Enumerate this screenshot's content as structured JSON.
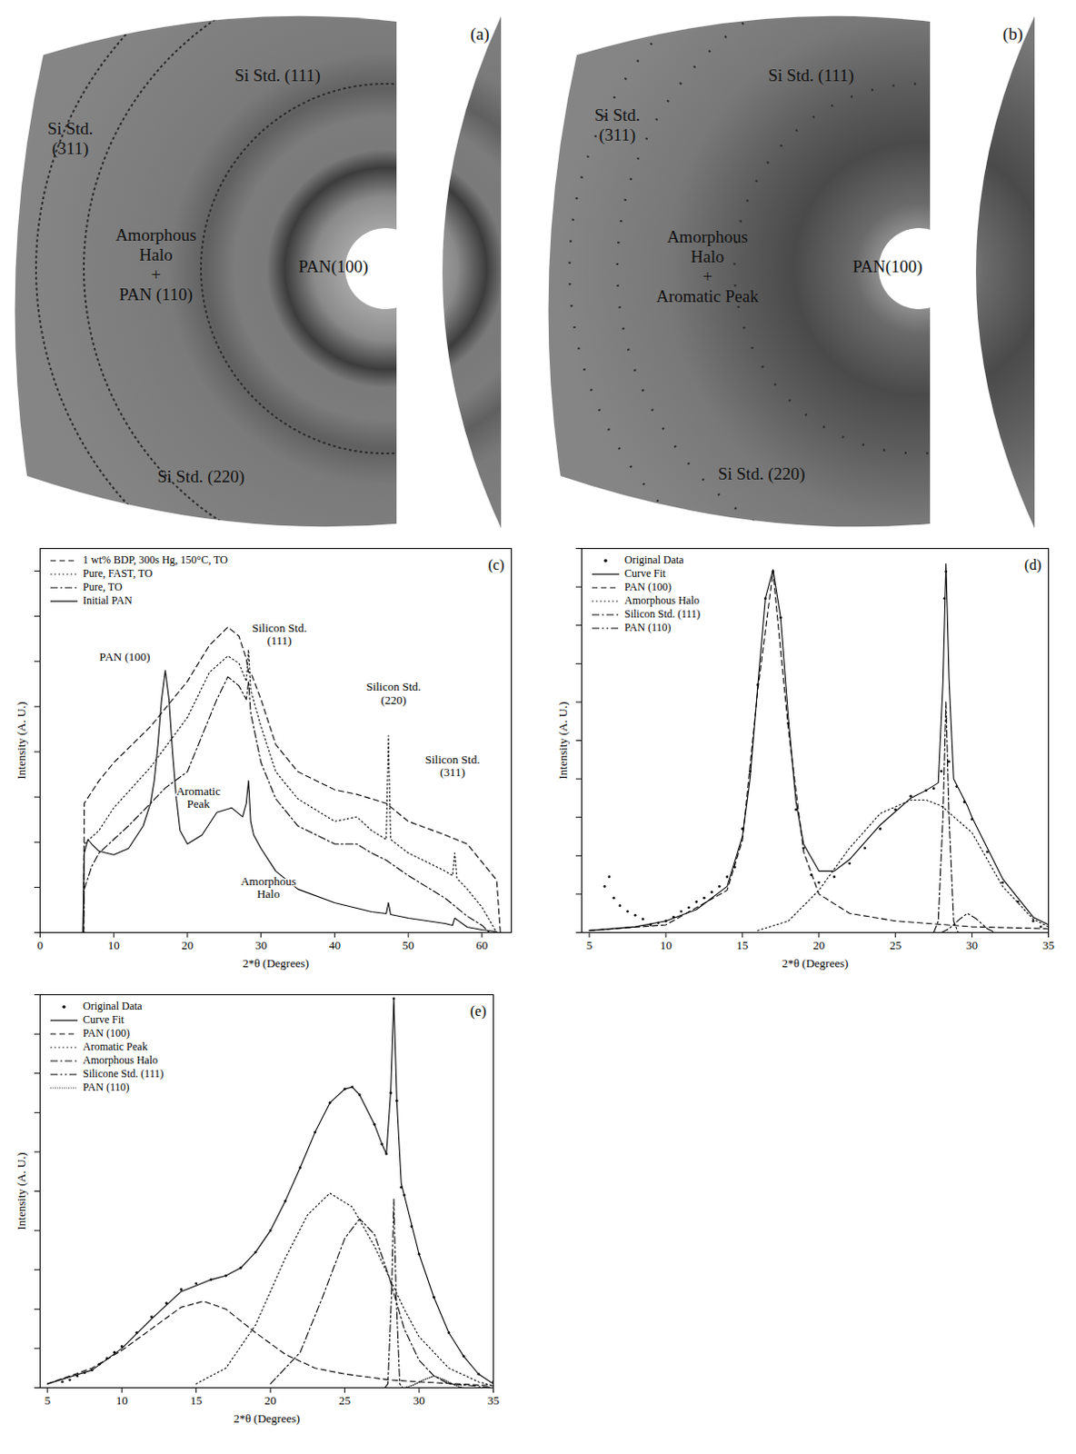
{
  "chart_data": [
    {
      "type": "image",
      "title": "(a)",
      "annotations": [
        {
          "text": "Si Std. (111)"
        },
        {
          "text": "Si Std.\n(311)"
        },
        {
          "text": "Amorphous\nHalo\n+\nPAN (110)"
        },
        {
          "text": "PAN(100)"
        },
        {
          "text": "Si Std. (220)"
        }
      ]
    },
    {
      "type": "image",
      "title": "(b)",
      "annotations": [
        {
          "text": "Si Std. (111)"
        },
        {
          "text": "Si Std.\n(311)"
        },
        {
          "text": "Amorphous\nHalo\n+\nAromatic Peak"
        },
        {
          "text": "PAN(100)"
        },
        {
          "text": "Si Std. (220)"
        }
      ]
    },
    {
      "type": "line",
      "title": "(c)",
      "x_label": "2*θ (Degrees)",
      "y_label": "Intensity (A. U.)",
      "xlim": [
        0,
        64
      ],
      "xticks": [
        0,
        10,
        20,
        30,
        40,
        50,
        60
      ],
      "ylim": [
        0,
        8.5
      ],
      "yticks": [
        0,
        1,
        2,
        3,
        4,
        5,
        6,
        7,
        8
      ],
      "tick_labels": "x",
      "legend": "top-left",
      "series": [
        {
          "name": "1 wt% BDP, 300s Hg, 150°C, TO",
          "color": "#000000",
          "line_style": "dashed",
          "x": [
            5.9,
            6,
            8,
            10,
            15,
            20,
            23,
            25.5,
            27,
            28,
            28.3,
            28.6,
            30,
            32,
            35,
            40,
            43,
            45,
            47,
            50,
            55,
            58,
            60,
            62,
            62.5
          ],
          "values": [
            0,
            2.86,
            3.36,
            3.76,
            4.56,
            5.56,
            6.36,
            6.76,
            6.56,
            6.06,
            5.76,
            5.76,
            5.16,
            4.16,
            3.56,
            3.16,
            3.06,
            2.96,
            2.86,
            2.46,
            2.16,
            1.96,
            1.56,
            1.16,
            0
          ]
        },
        {
          "name": "Pure, FAST, TO",
          "color": "#000000",
          "line_style": "dotted",
          "x": [
            5.9,
            6,
            8,
            10,
            15,
            20,
            23,
            25.5,
            27,
            28,
            28.3,
            28.6,
            30,
            32,
            35,
            40,
            43,
            45,
            47,
            47.3,
            47.6,
            50,
            55,
            56,
            56.3,
            56.6,
            58,
            60,
            62
          ],
          "values": [
            0,
            1.96,
            2.26,
            2.76,
            3.66,
            4.76,
            5.76,
            6.12,
            5.96,
            5.56,
            6.26,
            5.36,
            4.56,
            3.56,
            2.96,
            2.46,
            2.56,
            2.26,
            2.06,
            4.36,
            2.06,
            1.76,
            1.36,
            1.26,
            1.76,
            1.2,
            0.96,
            0.56,
            0
          ]
        },
        {
          "name": "Pure, TO",
          "color": "#000000",
          "line_style": "dashdot",
          "x": [
            5.9,
            6,
            7,
            8,
            10,
            12,
            15,
            17,
            20,
            22,
            24,
            25.5,
            27,
            28,
            28.3,
            28.6,
            30,
            32,
            35,
            40,
            43,
            45,
            47,
            50,
            55,
            58,
            60,
            61
          ],
          "values": [
            0,
            0.96,
            1.46,
            1.76,
            2.06,
            2.36,
            2.86,
            3.2,
            3.56,
            4.36,
            5.16,
            5.66,
            5.46,
            5.16,
            5.56,
            4.86,
            3.76,
            2.96,
            2.36,
            1.96,
            1.96,
            1.76,
            1.6,
            1.26,
            0.76,
            0.36,
            0.16,
            0
          ]
        },
        {
          "name": "Initial PAN",
          "color": "#000000",
          "line_style": "solid",
          "x": [
            5.8,
            6,
            6.5,
            7,
            8,
            10,
            12,
            14,
            15,
            15.5,
            16,
            16.5,
            17,
            17.5,
            18,
            18.5,
            19,
            20,
            22,
            24,
            26,
            27.5,
            28,
            28.3,
            28.6,
            29,
            30,
            32,
            35,
            40,
            45,
            47,
            47.3,
            47.6,
            50,
            55,
            56,
            56.3,
            58,
            60,
            62
          ],
          "values": [
            0,
            1.76,
            2.06,
            1.96,
            1.8,
            1.72,
            1.86,
            2.36,
            2.86,
            3.36,
            4.16,
            5.16,
            5.8,
            5.16,
            3.96,
            2.96,
            2.26,
            1.96,
            2.16,
            2.66,
            2.76,
            2.56,
            2.86,
            3.36,
            2.46,
            2.16,
            1.86,
            1.36,
            0.96,
            0.66,
            0.46,
            0.42,
            0.66,
            0.4,
            0.32,
            0.2,
            0.16,
            0.32,
            0.12,
            0.06,
            0.02
          ]
        }
      ],
      "annotations": [
        {
          "text": "PAN (100)",
          "x": 11.5,
          "y": 6.1
        },
        {
          "text": "Aromatic\nPeak",
          "x": 21.5,
          "y": 3.0
        },
        {
          "text": "Amorphous\nHalo",
          "x": 31,
          "y": 1.0
        },
        {
          "text": "Silicon Std.\n(111)",
          "x": 32.5,
          "y": 6.6
        },
        {
          "text": "Silicon Std.\n(220)",
          "x": 48,
          "y": 5.3
        },
        {
          "text": "Silicon Std.\n(311)",
          "x": 56,
          "y": 3.7
        }
      ]
    },
    {
      "type": "line",
      "title": "(d)",
      "x_label": "2*θ (Degrees)",
      "y_label": "Intensity (A. U.)",
      "xlim": [
        4.5,
        35
      ],
      "xticks": [
        5,
        10,
        15,
        20,
        25,
        30,
        35
      ],
      "ylim": [
        0,
        10
      ],
      "yticks": [
        0,
        1,
        2,
        3,
        4,
        5,
        6,
        7,
        8,
        9,
        10
      ],
      "tick_labels": "x",
      "legend": "top-left",
      "series": [
        {
          "name": "Original Data",
          "color": "#000000",
          "type": "scatter",
          "marker": "dot",
          "x": [
            6,
            6.3,
            6.6,
            7,
            7.5,
            8,
            8.5,
            9,
            9.5,
            10,
            10.5,
            11,
            11.5,
            12,
            12.5,
            13,
            13.5,
            14,
            14.5,
            15,
            15.5,
            16,
            16.5,
            17,
            17.5,
            18,
            18.5,
            19,
            19.5,
            20,
            21,
            22,
            23,
            24,
            25,
            26,
            27,
            27.5,
            28,
            28.2,
            28.3,
            28.5,
            29,
            29.5,
            30,
            31,
            32,
            33,
            34,
            34.5
          ],
          "values": [
            1.2,
            1.45,
            0.9,
            0.7,
            0.55,
            0.45,
            0.35,
            0.2,
            0.25,
            0.3,
            0.4,
            0.55,
            0.65,
            0.8,
            0.9,
            1.05,
            1.2,
            1.45,
            1.7,
            2.7,
            4.2,
            6.45,
            8.7,
            9.4,
            8.2,
            5.45,
            3.2,
            2.2,
            1.5,
            1.3,
            1.45,
            1.8,
            2.2,
            2.7,
            3.2,
            3.55,
            3.7,
            3.75,
            4.2,
            8.7,
            9.4,
            4.45,
            3.8,
            3.4,
            2.95,
            2.1,
            1.3,
            0.8,
            0.3,
            0.15
          ]
        },
        {
          "name": "Curve Fit",
          "color": "#000000",
          "line_style": "solid",
          "x": [
            5,
            8,
            10,
            12,
            14,
            15,
            15.5,
            16,
            16.5,
            17,
            17.5,
            18,
            18.5,
            19,
            20,
            21,
            22,
            24,
            26,
            27,
            27.8,
            28.1,
            28.3,
            28.5,
            28.8,
            29.7,
            30,
            32,
            34,
            35
          ],
          "values": [
            0.05,
            0.15,
            0.3,
            0.6,
            1.2,
            2.5,
            4.0,
            6.4,
            8.7,
            9.45,
            8.2,
            5.6,
            3.4,
            2.3,
            1.6,
            1.6,
            1.9,
            2.8,
            3.5,
            3.7,
            3.9,
            6.5,
            9.6,
            6.6,
            4.0,
            3.3,
            3.0,
            1.4,
            0.4,
            0.2
          ]
        },
        {
          "name": "PAN (100)",
          "color": "#000000",
          "line_style": "dashed",
          "x": [
            5,
            10,
            14,
            15,
            16,
            17,
            18,
            19,
            20,
            22,
            25,
            30,
            35
          ],
          "values": [
            0.05,
            0.2,
            1.1,
            2.4,
            6.3,
            9.4,
            5.3,
            2.1,
            1.0,
            0.5,
            0.3,
            0.15,
            0.1
          ]
        },
        {
          "name": "Amorphous Halo",
          "color": "#000000",
          "line_style": "dotted",
          "x": [
            16,
            18,
            20,
            22,
            24,
            26,
            27,
            28,
            30,
            32,
            34,
            35
          ],
          "values": [
            0.05,
            0.3,
            1.1,
            2.2,
            3.1,
            3.45,
            3.45,
            3.3,
            2.6,
            1.2,
            0.35,
            0.15
          ]
        },
        {
          "name": "Silicon Std. (111)",
          "color": "#000000",
          "line_style": "dashdot",
          "x": [
            27.5,
            27.8,
            28.1,
            28.3,
            28.5,
            28.8,
            29.1
          ],
          "values": [
            0,
            0.3,
            3,
            6,
            3,
            0.3,
            0
          ]
        },
        {
          "name": "PAN (110)",
          "color": "#000000",
          "line_style": "dashdotdot",
          "x": [
            28,
            28.5,
            29.2,
            29.7,
            30.3,
            31,
            31.5
          ],
          "values": [
            0,
            0.1,
            0.35,
            0.5,
            0.35,
            0.1,
            0
          ]
        }
      ]
    },
    {
      "type": "line",
      "title": "(e)",
      "x_label": "2*θ (Degrees)",
      "y_label": "Intensity (A. U.)",
      "xlim": [
        4.5,
        35
      ],
      "xticks": [
        5,
        10,
        15,
        20,
        25,
        30,
        35
      ],
      "ylim": [
        0,
        10
      ],
      "yticks": [
        0,
        1,
        2,
        3,
        4,
        5,
        6,
        7,
        8,
        9,
        10
      ],
      "tick_labels": "x",
      "legend": "top-left",
      "series": [
        {
          "name": "Original Data",
          "color": "#000000",
          "type": "scatter",
          "marker": "dot",
          "x": [
            6,
            6.5,
            7,
            7.5,
            8,
            8.5,
            9,
            9.5,
            10,
            11,
            12,
            13,
            14,
            15,
            16,
            17,
            18,
            19,
            20,
            21,
            22,
            23,
            24,
            25,
            25.5,
            26,
            27,
            27.5,
            27.8,
            28.1,
            28.3,
            28.5,
            28.8,
            29,
            29.5,
            30,
            31,
            32,
            33,
            34,
            35
          ],
          "values": [
            0.15,
            0.2,
            0.3,
            0.38,
            0.45,
            0.6,
            0.75,
            0.9,
            1.05,
            1.4,
            1.8,
            2.15,
            2.5,
            2.65,
            2.75,
            2.85,
            3.05,
            3.45,
            4.0,
            4.75,
            5.6,
            6.5,
            7.25,
            7.6,
            7.65,
            7.45,
            6.7,
            6.2,
            5.95,
            7.5,
            9.9,
            7.3,
            5.1,
            4.9,
            4.1,
            3.4,
            2.3,
            1.4,
            0.8,
            0.35,
            0.15
          ]
        },
        {
          "name": "Curve Fit",
          "color": "#000000",
          "line_style": "solid",
          "x": [
            5,
            8,
            10,
            12,
            14,
            15,
            16,
            17,
            18,
            19,
            20,
            21,
            22,
            23,
            24,
            25,
            25.5,
            26,
            27,
            27.5,
            27.8,
            28.1,
            28.3,
            28.5,
            28.8,
            29,
            30,
            31,
            32,
            33,
            34,
            35
          ],
          "values": [
            0.1,
            0.45,
            1.0,
            1.75,
            2.45,
            2.6,
            2.75,
            2.85,
            3.05,
            3.45,
            4.0,
            4.75,
            5.6,
            6.5,
            7.25,
            7.6,
            7.65,
            7.45,
            6.7,
            6.2,
            5.95,
            7.6,
            9.9,
            7.3,
            5.2,
            4.9,
            3.4,
            2.3,
            1.4,
            0.8,
            0.35,
            0.1
          ]
        },
        {
          "name": "PAN (100)",
          "color": "#000000",
          "line_style": "dashed",
          "x": [
            5,
            8,
            10,
            12,
            14,
            15.5,
            17,
            19,
            21,
            23,
            25,
            28,
            30,
            35
          ],
          "values": [
            0.1,
            0.5,
            0.95,
            1.5,
            2.05,
            2.2,
            2.0,
            1.4,
            0.85,
            0.5,
            0.35,
            0.2,
            0.15,
            0.05
          ]
        },
        {
          "name": "Aromatic Peak",
          "color": "#000000",
          "line_style": "dotted",
          "x": [
            15,
            17,
            19,
            21,
            22.5,
            24,
            25.5,
            27,
            28,
            29,
            30,
            32,
            34,
            35
          ],
          "values": [
            0.1,
            0.5,
            1.6,
            3.3,
            4.4,
            4.95,
            4.6,
            3.6,
            2.8,
            2.0,
            1.3,
            0.5,
            0.15,
            0.05
          ]
        },
        {
          "name": "Amorphous Halo",
          "color": "#000000",
          "line_style": "dashdot",
          "x": [
            20,
            22,
            23.5,
            25,
            26,
            27,
            28,
            29,
            30,
            31,
            32,
            35
          ],
          "values": [
            0.1,
            0.9,
            2.3,
            3.8,
            4.3,
            3.9,
            2.8,
            1.5,
            0.7,
            0.3,
            0.1,
            0
          ]
        },
        {
          "name": "Silicone Std. (111)",
          "color": "#000000",
          "line_style": "dashdotdot",
          "x": [
            27.7,
            27.9,
            28.15,
            28.3,
            28.45,
            28.7,
            28.9
          ],
          "values": [
            0,
            0.1,
            2.4,
            4.8,
            2.4,
            0.1,
            0
          ]
        },
        {
          "name": "PAN (110)",
          "color": "#000000",
          "line_style": "densely_dotted",
          "x": [
            29,
            29.5,
            30.3,
            31,
            31.7,
            32.5,
            33
          ],
          "values": [
            0,
            0.05,
            0.2,
            0.3,
            0.2,
            0.05,
            0
          ]
        }
      ]
    }
  ]
}
